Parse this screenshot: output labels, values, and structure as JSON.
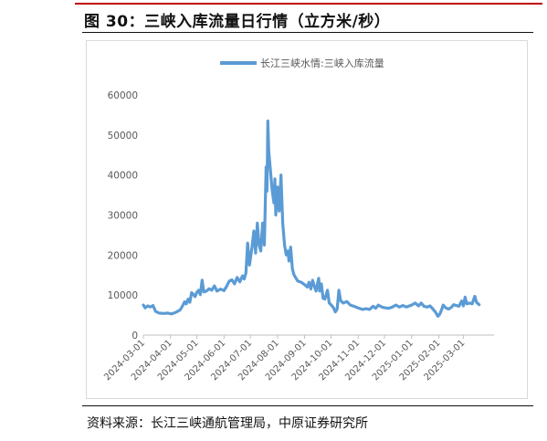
{
  "figure": {
    "title": "图 30：三峡入库流量日行情（立方米/秒）",
    "source": "资料来源：长江三峡通航管理局，中原证券研究所"
  },
  "colors": {
    "accent_rule": "#c00000",
    "series": "#5b9bd5",
    "text": "#111111",
    "axis_text": "#595959"
  },
  "chart_data": {
    "type": "line",
    "title": "",
    "xlabel": "",
    "ylabel": "",
    "ylim": [
      0,
      60000
    ],
    "yticks": [
      0,
      10000,
      20000,
      30000,
      40000,
      50000,
      60000
    ],
    "xticks": [
      "2024-03-01",
      "2024-04-01",
      "2024-05-01",
      "2024-06-01",
      "2024-07-01",
      "2024-08-01",
      "2024-09-01",
      "2024-10-01",
      "2024-11-01",
      "2024-12-01",
      "2025-01-01",
      "2025-02-01",
      "2025-03-01"
    ],
    "xlim": [
      "2024-03-01",
      "2025-04-05"
    ],
    "grid": false,
    "legend": "top-center",
    "series": [
      {
        "name": "长江三峡水情:三峡入库流量",
        "points": [
          [
            "2024-03-01",
            7500
          ],
          [
            "2024-03-03",
            6800
          ],
          [
            "2024-03-06",
            7300
          ],
          [
            "2024-03-09",
            7000
          ],
          [
            "2024-03-12",
            7400
          ],
          [
            "2024-03-15",
            5900
          ],
          [
            "2024-03-19",
            5500
          ],
          [
            "2024-03-24",
            5400
          ],
          [
            "2024-03-29",
            5500
          ],
          [
            "2024-04-02",
            5300
          ],
          [
            "2024-04-06",
            5600
          ],
          [
            "2024-04-09",
            5900
          ],
          [
            "2024-04-12",
            6300
          ],
          [
            "2024-04-15",
            7400
          ],
          [
            "2024-04-17",
            8300
          ],
          [
            "2024-04-19",
            7800
          ],
          [
            "2024-04-21",
            9000
          ],
          [
            "2024-04-23",
            8200
          ],
          [
            "2024-04-25",
            10600
          ],
          [
            "2024-04-27",
            10200
          ],
          [
            "2024-04-29",
            9600
          ],
          [
            "2024-05-01",
            10700
          ],
          [
            "2024-05-03",
            11200
          ],
          [
            "2024-05-05",
            10100
          ],
          [
            "2024-05-07",
            13700
          ],
          [
            "2024-05-09",
            10800
          ],
          [
            "2024-05-12",
            11000
          ],
          [
            "2024-05-15",
            11600
          ],
          [
            "2024-05-18",
            11200
          ],
          [
            "2024-05-21",
            12300
          ],
          [
            "2024-05-24",
            11000
          ],
          [
            "2024-05-28",
            11500
          ],
          [
            "2024-06-01",
            11100
          ],
          [
            "2024-06-04",
            12200
          ],
          [
            "2024-06-07",
            13500
          ],
          [
            "2024-06-10",
            13800
          ],
          [
            "2024-06-13",
            12800
          ],
          [
            "2024-06-16",
            14400
          ],
          [
            "2024-06-19",
            13300
          ],
          [
            "2024-06-22",
            14800
          ],
          [
            "2024-06-24",
            14000
          ],
          [
            "2024-06-26",
            15500
          ],
          [
            "2024-06-28",
            23000
          ],
          [
            "2024-06-30",
            17500
          ],
          [
            "2024-07-03",
            22000
          ],
          [
            "2024-07-05",
            26000
          ],
          [
            "2024-07-07",
            20500
          ],
          [
            "2024-07-09",
            28000
          ],
          [
            "2024-07-11",
            22500
          ],
          [
            "2024-07-13",
            21000
          ],
          [
            "2024-07-15",
            28000
          ],
          [
            "2024-07-17",
            22500
          ],
          [
            "2024-07-19",
            42000
          ],
          [
            "2024-07-20",
            36000
          ],
          [
            "2024-07-21",
            53500
          ],
          [
            "2024-07-22",
            46000
          ],
          [
            "2024-07-24",
            41000
          ],
          [
            "2024-07-26",
            36000
          ],
          [
            "2024-07-28",
            33000
          ],
          [
            "2024-07-29",
            39000
          ],
          [
            "2024-07-30",
            30000
          ],
          [
            "2024-08-01",
            37000
          ],
          [
            "2024-08-03",
            31000
          ],
          [
            "2024-08-05",
            40000
          ],
          [
            "2024-08-07",
            28000
          ],
          [
            "2024-08-09",
            22500
          ],
          [
            "2024-08-11",
            20000
          ],
          [
            "2024-08-13",
            21000
          ],
          [
            "2024-08-14",
            18500
          ],
          [
            "2024-08-16",
            22000
          ],
          [
            "2024-08-18",
            16500
          ],
          [
            "2024-08-20",
            15000
          ],
          [
            "2024-08-24",
            13500
          ],
          [
            "2024-08-28",
            13200
          ],
          [
            "2024-09-01",
            12600
          ],
          [
            "2024-09-04",
            12000
          ],
          [
            "2024-09-06",
            13200
          ],
          [
            "2024-09-08",
            11500
          ],
          [
            "2024-09-10",
            13700
          ],
          [
            "2024-09-12",
            12200
          ],
          [
            "2024-09-14",
            11000
          ],
          [
            "2024-09-16",
            13200
          ],
          [
            "2024-09-17",
            14200
          ],
          [
            "2024-09-18",
            11000
          ],
          [
            "2024-09-20",
            12800
          ],
          [
            "2024-09-22",
            9200
          ],
          [
            "2024-09-24",
            9000
          ],
          [
            "2024-09-26",
            10400
          ],
          [
            "2024-09-27",
            11200
          ],
          [
            "2024-09-29",
            8000
          ],
          [
            "2024-10-01",
            7600
          ],
          [
            "2024-10-04",
            6800
          ],
          [
            "2024-10-06",
            5800
          ],
          [
            "2024-10-08",
            6500
          ],
          [
            "2024-10-10",
            11200
          ],
          [
            "2024-10-12",
            8600
          ],
          [
            "2024-10-15",
            8000
          ],
          [
            "2024-10-19",
            8400
          ],
          [
            "2024-10-23",
            7500
          ],
          [
            "2024-10-27",
            7200
          ],
          [
            "2024-11-01",
            6800
          ],
          [
            "2024-11-06",
            6400
          ],
          [
            "2024-11-10",
            6600
          ],
          [
            "2024-11-14",
            6400
          ],
          [
            "2024-11-18",
            7200
          ],
          [
            "2024-11-21",
            6700
          ],
          [
            "2024-11-24",
            7500
          ],
          [
            "2024-11-28",
            7000
          ],
          [
            "2024-12-02",
            6800
          ],
          [
            "2024-12-06",
            6700
          ],
          [
            "2024-12-10",
            7000
          ],
          [
            "2024-12-14",
            7500
          ],
          [
            "2024-12-18",
            7000
          ],
          [
            "2024-12-22",
            7400
          ],
          [
            "2024-12-26",
            7000
          ],
          [
            "2025-01-01",
            7500
          ],
          [
            "2025-01-05",
            8000
          ],
          [
            "2025-01-09",
            7300
          ],
          [
            "2025-01-12",
            8000
          ],
          [
            "2025-01-15",
            7200
          ],
          [
            "2025-01-19",
            7000
          ],
          [
            "2025-01-22",
            7300
          ],
          [
            "2025-01-25",
            6600
          ],
          [
            "2025-01-28",
            5800
          ],
          [
            "2025-01-31",
            4700
          ],
          [
            "2025-02-02",
            5200
          ],
          [
            "2025-02-04",
            6200
          ],
          [
            "2025-02-06",
            7500
          ],
          [
            "2025-02-09",
            6800
          ],
          [
            "2025-02-12",
            6500
          ],
          [
            "2025-02-15",
            6900
          ],
          [
            "2025-02-18",
            7600
          ],
          [
            "2025-02-21",
            7400
          ],
          [
            "2025-02-24",
            7200
          ],
          [
            "2025-02-27",
            8500
          ],
          [
            "2025-03-01",
            7300
          ],
          [
            "2025-03-03",
            9500
          ],
          [
            "2025-03-05",
            7800
          ],
          [
            "2025-03-08",
            8000
          ],
          [
            "2025-03-11",
            7800
          ],
          [
            "2025-03-14",
            9700
          ],
          [
            "2025-03-16",
            8200
          ],
          [
            "2025-03-19",
            7600
          ]
        ]
      }
    ]
  }
}
